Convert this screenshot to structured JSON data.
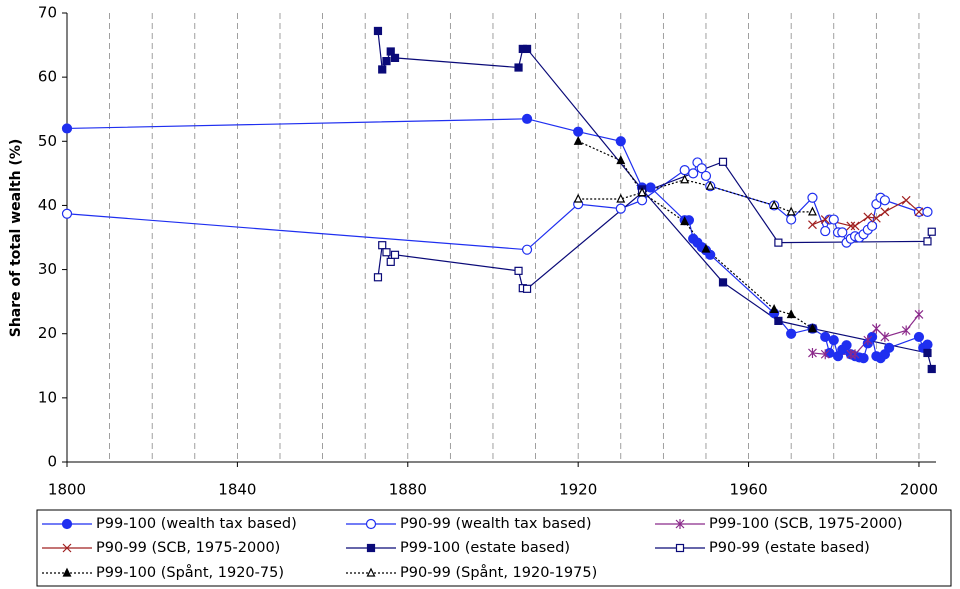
{
  "chart_data": {
    "type": "line",
    "y_label": "Share of total wealth (%)",
    "xlim": [
      1800,
      2004
    ],
    "ylim": [
      0,
      70
    ],
    "xticks": [
      1800,
      1840,
      1880,
      1920,
      1960,
      2000
    ],
    "yticks": [
      0,
      10,
      20,
      30,
      40,
      50,
      60,
      70
    ],
    "x_gridlines": [
      1810,
      1820,
      1830,
      1840,
      1850,
      1860,
      1870,
      1880,
      1890,
      1900,
      1910,
      1920,
      1930,
      1940,
      1950,
      1960,
      1970,
      1980,
      1990,
      2000
    ],
    "legend": "bottom",
    "series": [
      {
        "name": "P99-100 (wealth tax based)",
        "color": "#1f2ff0",
        "marker": "filled-circle",
        "dash": "solid",
        "x": [
          1800,
          1908,
          1920,
          1930,
          1935,
          1937,
          1945,
          1946,
          1947,
          1948,
          1949,
          1950,
          1951,
          1966,
          1970,
          1975,
          1978,
          1979,
          1980,
          1981,
          1982,
          1983,
          1984,
          1985,
          1986,
          1987,
          1988,
          1989,
          1990,
          1991,
          1992,
          1993,
          2000,
          2001,
          2002
        ],
        "values": [
          52,
          53.5,
          51.5,
          50,
          42.8,
          42.8,
          37.7,
          37.7,
          34.8,
          34.2,
          33.5,
          33,
          32.3,
          23.2,
          20,
          20.8,
          19.5,
          17,
          19,
          16.5,
          17.5,
          18.2,
          16.8,
          16.5,
          16.3,
          16.2,
          18.5,
          19.5,
          16.5,
          16.2,
          16.8,
          17.8,
          19.5,
          17.8,
          18.3
        ]
      },
      {
        "name": "P90-99 (wealth tax based)",
        "color": "#1f2ff0",
        "marker": "open-circle",
        "dash": "solid",
        "x": [
          1800,
          1908,
          1920,
          1930,
          1935,
          1945,
          1947,
          1948,
          1949,
          1950,
          1951,
          1966,
          1970,
          1975,
          1978,
          1979,
          1980,
          1981,
          1982,
          1983,
          1984,
          1985,
          1986,
          1987,
          1988,
          1989,
          1990,
          1991,
          1992,
          2000,
          2002
        ],
        "values": [
          38.7,
          33.1,
          40.2,
          39.5,
          40.8,
          45.5,
          45,
          46.7,
          45.8,
          44.6,
          43,
          40,
          37.8,
          41.2,
          36,
          37.8,
          37.8,
          35.8,
          35.8,
          34.2,
          34.8,
          35.2,
          35,
          35.5,
          36.2,
          36.8,
          40.2,
          41.2,
          40.8,
          39,
          39
        ]
      },
      {
        "name": "P99-100 (SCB, 1975-2000)",
        "color": "#8b2a8b",
        "marker": "asterisk",
        "dash": "solid",
        "x": [
          1975,
          1978,
          1984,
          1985,
          1988,
          1990,
          1992,
          1997,
          2000
        ],
        "values": [
          17,
          16.8,
          16.8,
          16.8,
          19,
          20.8,
          19.5,
          20.5,
          23
        ]
      },
      {
        "name": "P90-99 (SCB, 1975-2000)",
        "color": "#a02020",
        "marker": "cross",
        "dash": "solid",
        "x": [
          1975,
          1978,
          1984,
          1985,
          1988,
          1990,
          1992,
          1997,
          2000
        ],
        "values": [
          37,
          37.8,
          36.8,
          36.8,
          38.2,
          38,
          39,
          40.8,
          39
        ]
      },
      {
        "name": "P99-100 (estate based)",
        "color": "#0a0a78",
        "marker": "filled-square",
        "dash": "solid",
        "x": [
          1873,
          1874,
          1875,
          1876,
          1877,
          1906,
          1907,
          1908,
          1935,
          1954,
          1967,
          1975,
          2002,
          2003
        ],
        "values": [
          67.2,
          61.2,
          62.5,
          64,
          63,
          61.5,
          64.4,
          64.4,
          42.5,
          28,
          22,
          20.8,
          17,
          14.5
        ]
      },
      {
        "name": "P90-99 (estate based)",
        "color": "#0a0a78",
        "marker": "open-square",
        "dash": "solid",
        "x": [
          1873,
          1874,
          1875,
          1876,
          1877,
          1906,
          1907,
          1908,
          1935,
          1954,
          1967,
          2002,
          2003
        ],
        "values": [
          28.8,
          33.8,
          32.7,
          31.2,
          32.3,
          29.8,
          27.1,
          27,
          42,
          46.8,
          34.2,
          34.4,
          35.9
        ]
      },
      {
        "name": "P99-100 (Spånt, 1920-75)",
        "color": "#000000",
        "marker": "filled-triangle",
        "dash": "dotted",
        "x": [
          1920,
          1930,
          1935,
          1945,
          1950,
          1966,
          1970,
          1975
        ],
        "values": [
          50,
          47,
          42,
          37.5,
          33.2,
          23.8,
          23,
          20.8
        ]
      },
      {
        "name": "P90-99 (Spånt, 1920-1975)",
        "color": "#000000",
        "marker": "open-triangle",
        "dash": "dotted",
        "x": [
          1920,
          1930,
          1935,
          1945,
          1951,
          1966,
          1970,
          1975
        ],
        "values": [
          41,
          41,
          42,
          44,
          43,
          40,
          39,
          39
        ]
      }
    ]
  }
}
